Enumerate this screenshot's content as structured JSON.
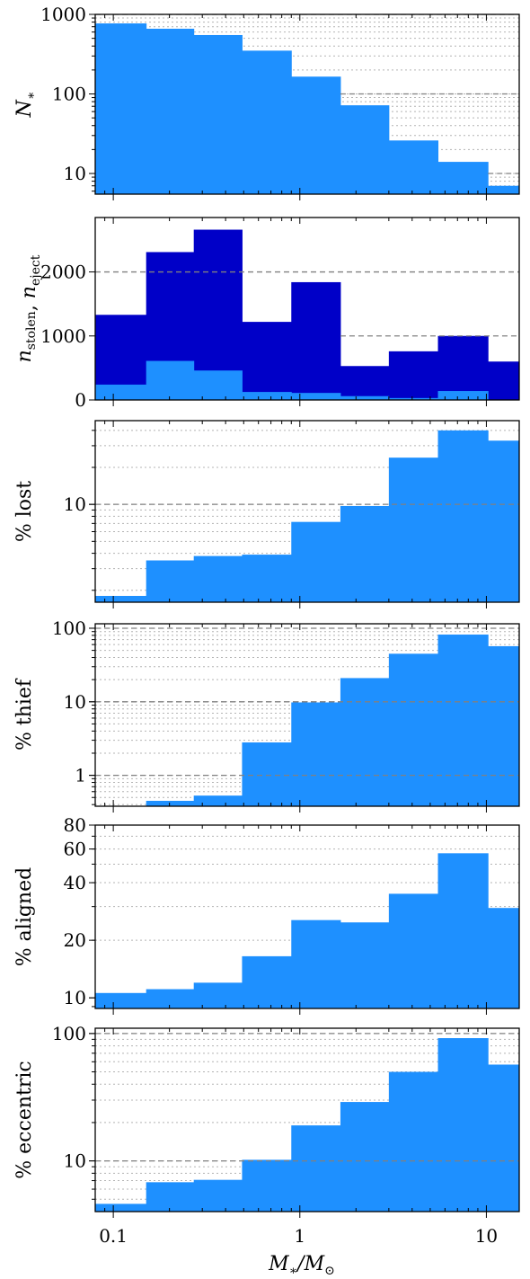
{
  "chart_data": {
    "type": "bar",
    "x_scale": "log",
    "xlim": [
      0.08,
      15
    ],
    "bin_edges": [
      0.08,
      0.15,
      0.27,
      0.49,
      0.9,
      1.65,
      3.0,
      5.5,
      10.2,
      15
    ],
    "xticks": [
      0.1,
      1,
      10
    ],
    "xtick_labels": [
      "0.1",
      "1",
      "10"
    ],
    "xlabel": "M*/M⊙",
    "colors": {
      "light": "#1e90ff",
      "dark": "#0000c8",
      "dashed": "#808080",
      "dotted": "#b4b4b4"
    },
    "panels": [
      {
        "ylabel": "N*",
        "y_scale": "log",
        "ylim": [
          5.5,
          1000
        ],
        "yticks": [
          10,
          100,
          1000
        ],
        "ytick_labels": [
          "10",
          "100",
          "1000"
        ],
        "dashed_lines": [
          [
            10,
            10.2
          ],
          [
            100,
            1.65
          ],
          [
            1000,
            0.08
          ]
        ],
        "series": [
          {
            "values": [
              770,
              660,
              550,
              350,
              165,
              72,
              26,
              14,
              7
            ],
            "color": "light"
          }
        ]
      },
      {
        "ylabel": "n_stolen, n_eject",
        "y_scale": "linear",
        "ylim": [
          0,
          2850
        ],
        "yticks": [
          0,
          1000,
          2000
        ],
        "ytick_labels": [
          "0",
          "1000",
          "2000"
        ],
        "dashed_lines": [
          [
            1000,
            1.65
          ],
          [
            2000,
            0.08
          ]
        ],
        "series": [
          {
            "values": [
              1330,
              2310,
              2660,
              1220,
              1840,
              530,
              760,
              1000,
              600
            ],
            "color": "dark"
          },
          {
            "values": [
              240,
              610,
              460,
              125,
              110,
              60,
              30,
              140,
              0
            ],
            "color": "light"
          }
        ]
      },
      {
        "ylabel": "% lost",
        "y_scale": "log",
        "ylim": [
          1.6,
          48
        ],
        "yticks": [
          10
        ],
        "ytick_labels": [
          "10"
        ],
        "dashed_lines": [
          [
            10,
            0.08
          ]
        ],
        "series": [
          {
            "values": [
              1.8,
              3.5,
              3.8,
              3.9,
              7.2,
              9.7,
              24,
              40,
              33
            ],
            "color": "light"
          }
        ]
      },
      {
        "ylabel": "% thief",
        "y_scale": "log",
        "ylim": [
          0.38,
          115
        ],
        "yticks": [
          1,
          10,
          100
        ],
        "ytick_labels": [
          "1",
          "10",
          "100"
        ],
        "dashed_lines": [
          [
            1,
            0.08
          ],
          [
            10,
            0.08
          ],
          [
            100,
            0.08
          ]
        ],
        "series": [
          {
            "values": [
              0,
              0.45,
              0.53,
              2.8,
              9.8,
              21,
              45,
              82,
              57
            ],
            "color": "light"
          }
        ]
      },
      {
        "ylabel": "% aligned",
        "y_scale": "log",
        "ylim": [
          8.8,
          80
        ],
        "yticks": [
          10,
          20,
          40,
          60,
          80
        ],
        "ytick_labels": [
          "10",
          "20",
          "40",
          "60",
          "80"
        ],
        "dashed_lines": [],
        "series": [
          {
            "values": [
              10.6,
              11.1,
              12,
              16.5,
              25.5,
              24.8,
              35,
              57,
              29.5
            ],
            "color": "light"
          }
        ]
      },
      {
        "ylabel": "% eccentric",
        "y_scale": "log",
        "ylim": [
          4,
          110
        ],
        "yticks": [
          10,
          100
        ],
        "ytick_labels": [
          "10",
          "100"
        ],
        "dashed_lines": [
          [
            10,
            0.08
          ],
          [
            100,
            0.08
          ]
        ],
        "series": [
          {
            "values": [
              4.6,
              6.8,
              7.1,
              10.2,
              19,
              29,
              50,
              92,
              57
            ],
            "color": "light"
          }
        ]
      }
    ]
  }
}
